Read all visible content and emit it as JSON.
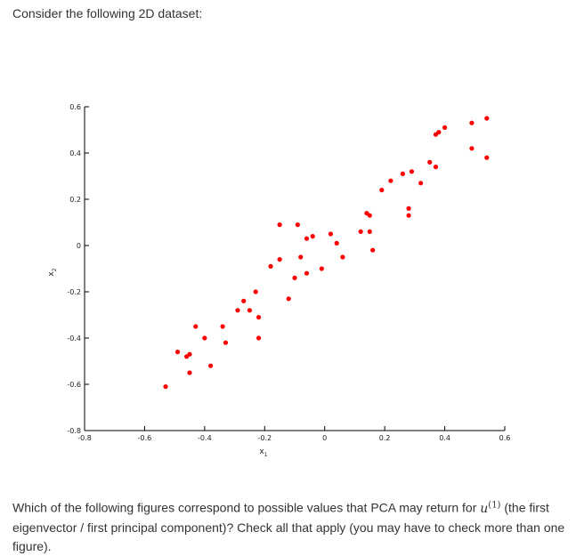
{
  "intro_text": "Consider the following 2D dataset:",
  "question": {
    "before": "Which of the following figures correspond to possible values that PCA may return for ",
    "var": "u",
    "sup": "(1)",
    "after": " (the first eigenvector / first principal component)? Check all that apply (you may have to check more than one figure)."
  },
  "chart_data": {
    "type": "scatter",
    "title": "",
    "xlabel": "x",
    "xlabel_sub": "1",
    "ylabel": "x",
    "ylabel_sub": "2",
    "xlim": [
      -0.8,
      0.6
    ],
    "ylim": [
      -0.8,
      0.6
    ],
    "xticks": [
      -0.8,
      -0.6,
      -0.4,
      -0.2,
      0,
      0.2,
      0.4,
      0.6
    ],
    "xtick_labels": [
      "-0.8",
      "-0.6",
      "-0.4",
      "-0.2",
      "0",
      "0.2",
      "0.4",
      "0.6"
    ],
    "yticks": [
      -0.8,
      -0.6,
      -0.4,
      -0.2,
      0,
      0.2,
      0.4,
      0.6
    ],
    "ytick_labels": [
      "-0.8",
      "-0.6",
      "-0.4",
      "-0.2",
      "0",
      "0.2",
      "0.4",
      "0.6"
    ],
    "grid": false,
    "marker_color": "#ff0000",
    "points": [
      {
        "x": -0.53,
        "y": -0.61
      },
      {
        "x": -0.49,
        "y": -0.46
      },
      {
        "x": -0.46,
        "y": -0.48
      },
      {
        "x": -0.45,
        "y": -0.47
      },
      {
        "x": -0.45,
        "y": -0.55
      },
      {
        "x": -0.43,
        "y": -0.35
      },
      {
        "x": -0.4,
        "y": -0.4
      },
      {
        "x": -0.38,
        "y": -0.52
      },
      {
        "x": -0.34,
        "y": -0.35
      },
      {
        "x": -0.33,
        "y": -0.42
      },
      {
        "x": -0.29,
        "y": -0.28
      },
      {
        "x": -0.27,
        "y": -0.24
      },
      {
        "x": -0.25,
        "y": -0.28
      },
      {
        "x": -0.23,
        "y": -0.2
      },
      {
        "x": -0.22,
        "y": -0.31
      },
      {
        "x": -0.22,
        "y": -0.4
      },
      {
        "x": -0.18,
        "y": -0.09
      },
      {
        "x": -0.15,
        "y": 0.09
      },
      {
        "x": -0.15,
        "y": -0.06
      },
      {
        "x": -0.12,
        "y": -0.23
      },
      {
        "x": -0.1,
        "y": -0.14
      },
      {
        "x": -0.09,
        "y": 0.09
      },
      {
        "x": -0.08,
        "y": -0.05
      },
      {
        "x": -0.06,
        "y": 0.03
      },
      {
        "x": -0.06,
        "y": -0.12
      },
      {
        "x": -0.04,
        "y": 0.04
      },
      {
        "x": -0.01,
        "y": -0.1
      },
      {
        "x": 0.02,
        "y": 0.05
      },
      {
        "x": 0.04,
        "y": 0.01
      },
      {
        "x": 0.06,
        "y": -0.05
      },
      {
        "x": 0.12,
        "y": 0.06
      },
      {
        "x": 0.14,
        "y": 0.14
      },
      {
        "x": 0.15,
        "y": 0.13
      },
      {
        "x": 0.15,
        "y": 0.06
      },
      {
        "x": 0.16,
        "y": -0.02
      },
      {
        "x": 0.19,
        "y": 0.24
      },
      {
        "x": 0.22,
        "y": 0.28
      },
      {
        "x": 0.26,
        "y": 0.31
      },
      {
        "x": 0.28,
        "y": 0.16
      },
      {
        "x": 0.28,
        "y": 0.13
      },
      {
        "x": 0.29,
        "y": 0.32
      },
      {
        "x": 0.32,
        "y": 0.27
      },
      {
        "x": 0.35,
        "y": 0.36
      },
      {
        "x": 0.37,
        "y": 0.34
      },
      {
        "x": 0.37,
        "y": 0.48
      },
      {
        "x": 0.38,
        "y": 0.49
      },
      {
        "x": 0.4,
        "y": 0.51
      },
      {
        "x": 0.49,
        "y": 0.53
      },
      {
        "x": 0.49,
        "y": 0.42
      },
      {
        "x": 0.54,
        "y": 0.55
      },
      {
        "x": 0.54,
        "y": 0.38
      }
    ]
  }
}
